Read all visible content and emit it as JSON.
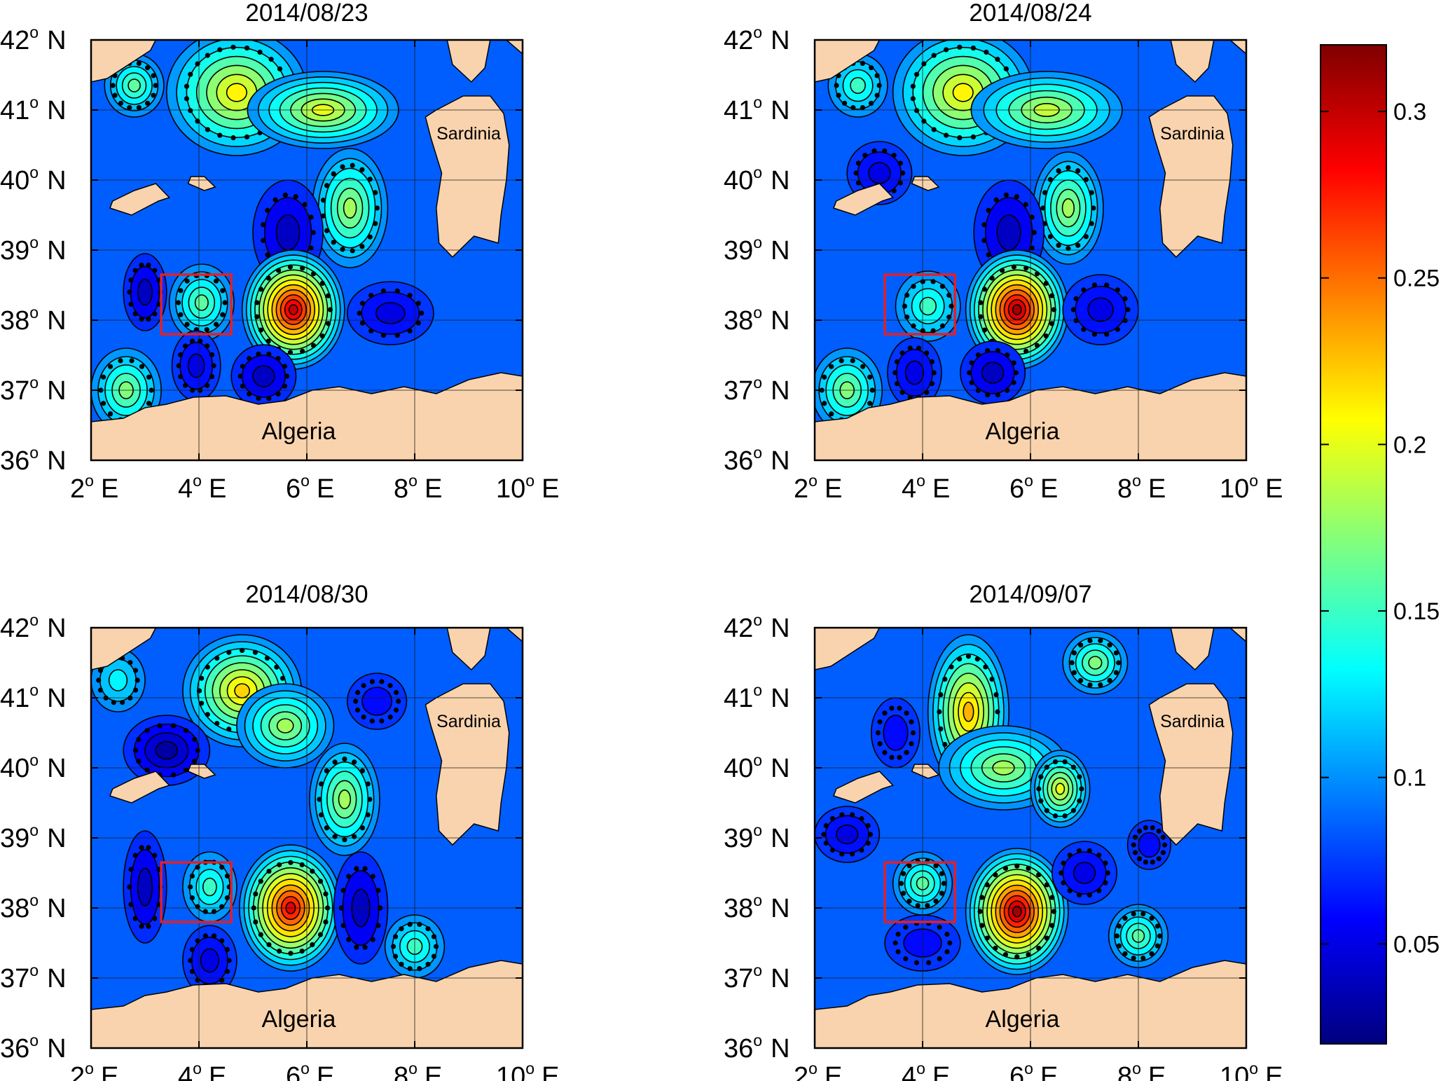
{
  "figure": {
    "panels": [
      {
        "title": "2014/08/23",
        "land_labels": [
          "Sardinia",
          "Algeria"
        ],
        "eddies": [
          {
            "lon": 2.8,
            "lat": 41.35,
            "peak": 0.16,
            "rx": 0.55,
            "ry": 0.45,
            "type": "anticyclonic"
          },
          {
            "lon": 4.7,
            "lat": 41.25,
            "peak": 0.21,
            "rx": 1.3,
            "ry": 0.9,
            "type": "anticyclonic"
          },
          {
            "lon": 6.3,
            "lat": 41.0,
            "peak": 0.2,
            "rx": 1.4,
            "ry": 0.55,
            "type": "plateau"
          },
          {
            "lon": 6.8,
            "lat": 39.6,
            "peak": 0.18,
            "rx": 0.7,
            "ry": 0.85,
            "type": "anticyclonic"
          },
          {
            "lon": 5.65,
            "lat": 39.25,
            "peak": 0.04,
            "rx": 0.65,
            "ry": 0.75,
            "type": "cyclonic"
          },
          {
            "lon": 3.0,
            "lat": 38.4,
            "peak": 0.04,
            "rx": 0.4,
            "ry": 0.55,
            "type": "cyclonic"
          },
          {
            "lon": 4.05,
            "lat": 38.25,
            "peak": 0.16,
            "rx": 0.6,
            "ry": 0.55,
            "type": "anticyclonic"
          },
          {
            "lon": 5.75,
            "lat": 38.15,
            "peak": 0.3,
            "rx": 0.95,
            "ry": 0.85,
            "type": "anticyclonic"
          },
          {
            "lon": 7.55,
            "lat": 38.1,
            "peak": 0.05,
            "rx": 0.8,
            "ry": 0.45,
            "type": "cyclonic"
          },
          {
            "lon": 2.65,
            "lat": 37.0,
            "peak": 0.17,
            "rx": 0.65,
            "ry": 0.6,
            "type": "anticyclonic"
          },
          {
            "lon": 3.95,
            "lat": 37.35,
            "peak": 0.05,
            "rx": 0.45,
            "ry": 0.5,
            "type": "cyclonic"
          },
          {
            "lon": 5.2,
            "lat": 37.2,
            "peak": 0.04,
            "rx": 0.6,
            "ry": 0.45,
            "type": "cyclonic"
          }
        ]
      },
      {
        "title": "2014/08/24",
        "land_labels": [
          "Sardinia",
          "Algeria"
        ],
        "eddies": [
          {
            "lon": 2.8,
            "lat": 41.35,
            "peak": 0.15,
            "rx": 0.55,
            "ry": 0.45,
            "type": "anticyclonic"
          },
          {
            "lon": 4.75,
            "lat": 41.25,
            "peak": 0.21,
            "rx": 1.3,
            "ry": 0.9,
            "type": "anticyclonic"
          },
          {
            "lon": 6.3,
            "lat": 41.0,
            "peak": 0.19,
            "rx": 1.4,
            "ry": 0.55,
            "type": "plateau"
          },
          {
            "lon": 3.2,
            "lat": 40.1,
            "peak": 0.05,
            "rx": 0.6,
            "ry": 0.45,
            "type": "cyclonic"
          },
          {
            "lon": 6.7,
            "lat": 39.6,
            "peak": 0.18,
            "rx": 0.65,
            "ry": 0.8,
            "type": "anticyclonic"
          },
          {
            "lon": 5.6,
            "lat": 39.25,
            "peak": 0.04,
            "rx": 0.65,
            "ry": 0.75,
            "type": "cyclonic"
          },
          {
            "lon": 4.1,
            "lat": 38.2,
            "peak": 0.15,
            "rx": 0.6,
            "ry": 0.5,
            "type": "anticyclonic"
          },
          {
            "lon": 5.75,
            "lat": 38.15,
            "peak": 0.31,
            "rx": 0.95,
            "ry": 0.85,
            "type": "anticyclonic"
          },
          {
            "lon": 7.3,
            "lat": 38.15,
            "peak": 0.05,
            "rx": 0.7,
            "ry": 0.5,
            "type": "cyclonic"
          },
          {
            "lon": 2.6,
            "lat": 37.0,
            "peak": 0.17,
            "rx": 0.65,
            "ry": 0.6,
            "type": "anticyclonic"
          },
          {
            "lon": 3.85,
            "lat": 37.25,
            "peak": 0.05,
            "rx": 0.5,
            "ry": 0.5,
            "type": "cyclonic"
          },
          {
            "lon": 5.3,
            "lat": 37.25,
            "peak": 0.04,
            "rx": 0.6,
            "ry": 0.45,
            "type": "cyclonic"
          }
        ]
      },
      {
        "title": "2014/08/30",
        "land_labels": [
          "Sardinia",
          "Algeria"
        ],
        "eddies": [
          {
            "lon": 2.5,
            "lat": 41.25,
            "peak": 0.13,
            "rx": 0.5,
            "ry": 0.45,
            "type": "anticyclonic"
          },
          {
            "lon": 4.8,
            "lat": 41.1,
            "peak": 0.22,
            "rx": 1.1,
            "ry": 0.8,
            "type": "anticyclonic"
          },
          {
            "lon": 5.6,
            "lat": 40.6,
            "peak": 0.18,
            "rx": 0.9,
            "ry": 0.6,
            "type": "plateau"
          },
          {
            "lon": 3.4,
            "lat": 40.25,
            "peak": 0.03,
            "rx": 0.8,
            "ry": 0.5,
            "type": "cyclonic"
          },
          {
            "lon": 7.3,
            "lat": 40.95,
            "peak": 0.06,
            "rx": 0.55,
            "ry": 0.4,
            "type": "cyclonic"
          },
          {
            "lon": 6.7,
            "lat": 39.55,
            "peak": 0.18,
            "rx": 0.65,
            "ry": 0.8,
            "type": "anticyclonic"
          },
          {
            "lon": 3.0,
            "lat": 38.3,
            "peak": 0.04,
            "rx": 0.4,
            "ry": 0.8,
            "type": "cyclonic"
          },
          {
            "lon": 4.2,
            "lat": 38.3,
            "peak": 0.15,
            "rx": 0.5,
            "ry": 0.5,
            "type": "anticyclonic"
          },
          {
            "lon": 5.7,
            "lat": 38.0,
            "peak": 0.29,
            "rx": 0.95,
            "ry": 0.9,
            "type": "anticyclonic"
          },
          {
            "lon": 7.0,
            "lat": 38.0,
            "peak": 0.04,
            "rx": 0.5,
            "ry": 0.8,
            "type": "cyclonic"
          },
          {
            "lon": 4.2,
            "lat": 37.25,
            "peak": 0.05,
            "rx": 0.5,
            "ry": 0.5,
            "type": "cyclonic"
          },
          {
            "lon": 8.0,
            "lat": 37.45,
            "peak": 0.15,
            "rx": 0.55,
            "ry": 0.45,
            "type": "anticyclonic"
          }
        ]
      },
      {
        "title": "2014/09/07",
        "land_labels": [
          "Sardinia",
          "Algeria"
        ],
        "eddies": [
          {
            "lon": 4.85,
            "lat": 40.8,
            "peak": 0.23,
            "rx": 0.75,
            "ry": 1.1,
            "type": "anticyclonic"
          },
          {
            "lon": 5.5,
            "lat": 40.0,
            "peak": 0.18,
            "rx": 1.2,
            "ry": 0.6,
            "type": "plateau"
          },
          {
            "lon": 7.2,
            "lat": 41.5,
            "peak": 0.17,
            "rx": 0.6,
            "ry": 0.45,
            "type": "anticyclonic"
          },
          {
            "lon": 3.5,
            "lat": 40.5,
            "peak": 0.06,
            "rx": 0.45,
            "ry": 0.5,
            "type": "cyclonic"
          },
          {
            "lon": 6.55,
            "lat": 39.7,
            "peak": 0.2,
            "rx": 0.55,
            "ry": 0.55,
            "type": "anticyclonic"
          },
          {
            "lon": 4.0,
            "lat": 38.35,
            "peak": 0.16,
            "rx": 0.55,
            "ry": 0.45,
            "type": "anticyclonic"
          },
          {
            "lon": 5.75,
            "lat": 37.95,
            "peak": 0.31,
            "rx": 0.95,
            "ry": 0.9,
            "type": "anticyclonic"
          },
          {
            "lon": 7.0,
            "lat": 38.5,
            "peak": 0.05,
            "rx": 0.6,
            "ry": 0.45,
            "type": "cyclonic"
          },
          {
            "lon": 8.2,
            "lat": 38.9,
            "peak": 0.06,
            "rx": 0.4,
            "ry": 0.35,
            "type": "cyclonic"
          },
          {
            "lon": 8.0,
            "lat": 37.6,
            "peak": 0.16,
            "rx": 0.55,
            "ry": 0.45,
            "type": "anticyclonic"
          },
          {
            "lon": 2.6,
            "lat": 39.05,
            "peak": 0.05,
            "rx": 0.6,
            "ry": 0.4,
            "type": "cyclonic"
          },
          {
            "lon": 4.0,
            "lat": 37.5,
            "peak": 0.06,
            "rx": 0.7,
            "ry": 0.4,
            "type": "cyclonic"
          }
        ]
      }
    ],
    "axes": {
      "lon_range": [
        2,
        10
      ],
      "lat_range": [
        36,
        42
      ],
      "lon_ticks": [
        {
          "value": 2,
          "num": "2",
          "deg": "o",
          "hemi": "E"
        },
        {
          "value": 4,
          "num": "4",
          "deg": "o",
          "hemi": "E"
        },
        {
          "value": 6,
          "num": "6",
          "deg": "o",
          "hemi": "E"
        },
        {
          "value": 8,
          "num": "8",
          "deg": "o",
          "hemi": "E"
        },
        {
          "value": 10,
          "num": "10",
          "deg": "o",
          "hemi": "E"
        }
      ],
      "lat_ticks": [
        {
          "value": 42,
          "num": "42",
          "deg": "o",
          "hemi": "N"
        },
        {
          "value": 41,
          "num": "41",
          "deg": "o",
          "hemi": "N"
        },
        {
          "value": 40,
          "num": "40",
          "deg": "o",
          "hemi": "N"
        },
        {
          "value": 39,
          "num": "39",
          "deg": "o",
          "hemi": "N"
        },
        {
          "value": 38,
          "num": "38",
          "deg": "o",
          "hemi": "N"
        },
        {
          "value": 37,
          "num": "37",
          "deg": "o",
          "hemi": "N"
        },
        {
          "value": 36,
          "num": "36",
          "deg": "o",
          "hemi": "N"
        }
      ]
    },
    "study_box": {
      "lon": [
        3.3,
        4.6
      ],
      "lat": [
        37.8,
        38.65
      ],
      "color": "#e0202a"
    },
    "colorbar": {
      "range": [
        0.02,
        0.32
      ],
      "ticks": [
        {
          "value": 0.3,
          "label": "0.3"
        },
        {
          "value": 0.25,
          "label": "0.25"
        },
        {
          "value": 0.2,
          "label": "0.2"
        },
        {
          "value": 0.15,
          "label": "0.15"
        },
        {
          "value": 0.1,
          "label": "0.1"
        },
        {
          "value": 0.05,
          "label": "0.05"
        }
      ],
      "colormap": "jet"
    },
    "colors": {
      "land": "#f9d3ad",
      "contour": "#000000",
      "eddy_marker": "#000000",
      "grid": "#1a1a1a"
    }
  }
}
